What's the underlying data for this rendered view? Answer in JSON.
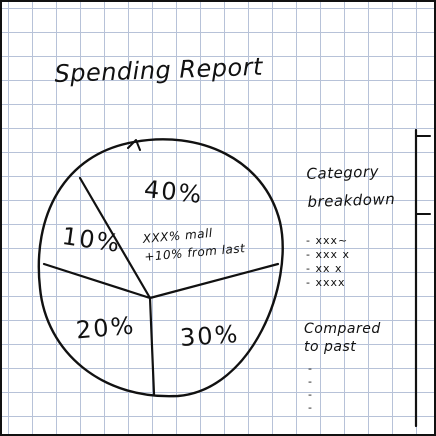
{
  "report": {
    "title": "Spending Report"
  },
  "chart_data": {
    "type": "pie",
    "values": [
      40,
      10,
      20,
      30
    ],
    "labels": [
      "40%",
      "10%",
      "20%",
      "30%"
    ],
    "annotations": [
      "XXX% mall",
      "+10% from last"
    ]
  },
  "sidebar": {
    "category_heading": [
      "Category",
      "breakdown"
    ],
    "category_items": [
      "- xxx~",
      "- xxx x",
      "- xx x",
      "- xxxx"
    ],
    "compared_heading": [
      "Compared",
      "to past"
    ],
    "compared_items": [
      "-",
      "-",
      "-",
      "-"
    ]
  }
}
